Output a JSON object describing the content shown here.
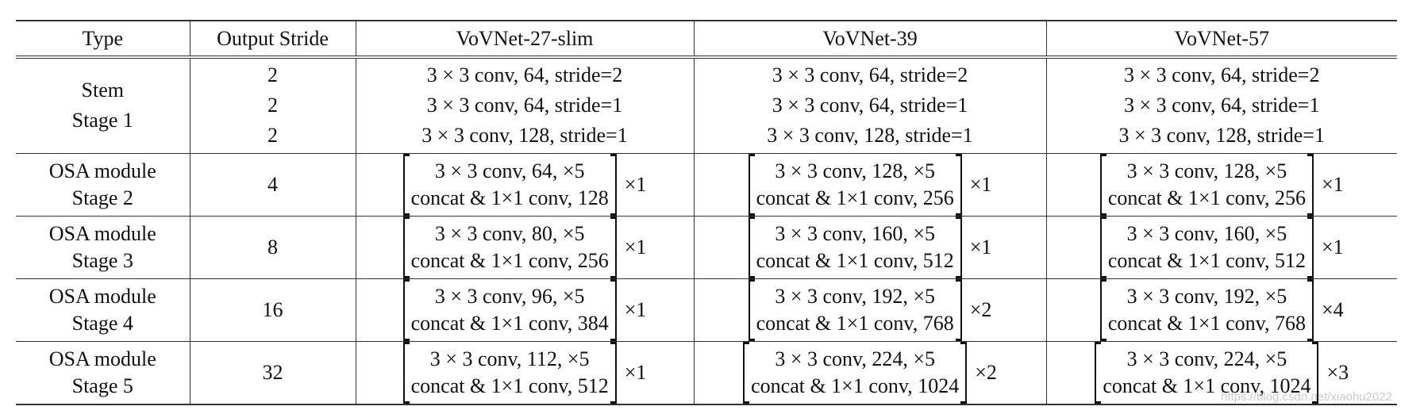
{
  "table": {
    "headers": [
      "Type",
      "Output Stride",
      "VoVNet-27-slim",
      "VoVNet-39",
      "VoVNet-57"
    ],
    "stem": {
      "type": [
        "Stem",
        "Stage 1"
      ],
      "strides": [
        "2",
        "2",
        "2"
      ],
      "models": [
        [
          "3 × 3 conv, 64, stride=2",
          "3 × 3 conv, 64, stride=1",
          "3 × 3 conv, 128, stride=1"
        ],
        [
          "3 × 3 conv, 64, stride=2",
          "3 × 3 conv, 64, stride=1",
          "3 × 3 conv, 128, stride=1"
        ],
        [
          "3 × 3 conv, 64, stride=2",
          "3 × 3 conv, 64, stride=1",
          "3 × 3 conv, 128, stride=1"
        ]
      ]
    },
    "stages": [
      {
        "type": [
          "OSA module",
          "Stage 2"
        ],
        "stride": "4",
        "models": [
          {
            "lines": [
              "3 × 3 conv, 64, ×5",
              "concat & 1×1 conv, 128"
            ],
            "repeat": "×1"
          },
          {
            "lines": [
              "3 × 3 conv, 128, ×5",
              "concat & 1×1 conv, 256"
            ],
            "repeat": "×1"
          },
          {
            "lines": [
              "3 × 3 conv, 128, ×5",
              "concat & 1×1 conv, 256"
            ],
            "repeat": "×1"
          }
        ]
      },
      {
        "type": [
          "OSA module",
          "Stage 3"
        ],
        "stride": "8",
        "models": [
          {
            "lines": [
              "3 × 3 conv, 80, ×5",
              "concat & 1×1 conv, 256"
            ],
            "repeat": "×1"
          },
          {
            "lines": [
              "3 × 3 conv, 160, ×5",
              "concat & 1×1 conv, 512"
            ],
            "repeat": "×1"
          },
          {
            "lines": [
              "3 × 3 conv, 160, ×5",
              "concat & 1×1 conv, 512"
            ],
            "repeat": "×1"
          }
        ]
      },
      {
        "type": [
          "OSA module",
          "Stage 4"
        ],
        "stride": "16",
        "models": [
          {
            "lines": [
              "3 × 3 conv, 96, ×5",
              "concat & 1×1 conv, 384"
            ],
            "repeat": "×1"
          },
          {
            "lines": [
              "3 × 3 conv, 192, ×5",
              "concat & 1×1 conv, 768"
            ],
            "repeat": "×2"
          },
          {
            "lines": [
              "3 × 3 conv, 192, ×5",
              "concat & 1×1 conv, 768"
            ],
            "repeat": "×4"
          }
        ]
      },
      {
        "type": [
          "OSA module",
          "Stage 5"
        ],
        "stride": "32",
        "models": [
          {
            "lines": [
              "3 × 3 conv, 112, ×5",
              "concat & 1×1 conv, 512"
            ],
            "repeat": "×1"
          },
          {
            "lines": [
              "3 × 3 conv, 224, ×5",
              "concat & 1×1 conv, 1024"
            ],
            "repeat": "×2"
          },
          {
            "lines": [
              "3 × 3 conv, 224, ×5",
              "concat & 1×1 conv, 1024"
            ],
            "repeat": "×3"
          }
        ]
      }
    ]
  },
  "watermark": "https://blog.csdn.net/xiaohu2022"
}
